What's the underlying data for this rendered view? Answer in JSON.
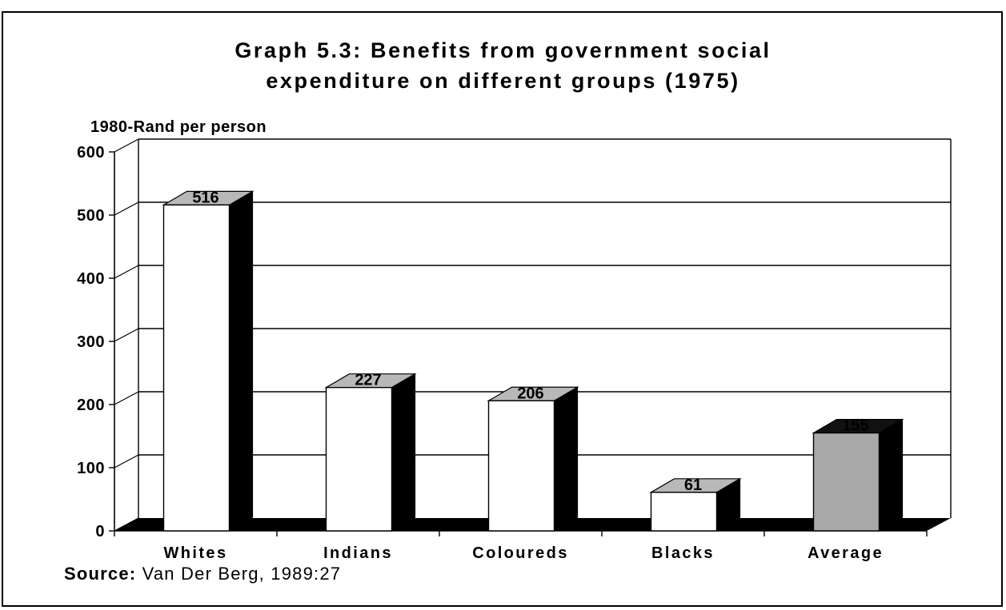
{
  "chart_data": {
    "type": "bar",
    "title_lines": [
      "Graph 5.3: Benefits from government social",
      "expenditure on different groups (1975)"
    ],
    "ylabel": "1980-Rand per person",
    "xlabel": "",
    "ylim": [
      0,
      600
    ],
    "yticks": [
      "0",
      "100",
      "200",
      "300",
      "400",
      "500",
      "600"
    ],
    "categories": [
      "Whites",
      "Indians",
      "Coloureds",
      "Blacks",
      "Average"
    ],
    "values": [
      516,
      227,
      206,
      61,
      155
    ],
    "data_labels": [
      "516",
      "227",
      "206",
      "61",
      "155"
    ],
    "highlight_category": "Average",
    "grid": true,
    "legend": "none",
    "colors": {
      "bar_face": "#ffffff",
      "bar_side": "#000000",
      "bar_top": "#b8b8b8",
      "highlight_face": "#a9a9a9",
      "highlight_top": "#111111",
      "floor": "#000000",
      "grid": "#000000"
    }
  },
  "source": {
    "label": "Source:",
    "text": " Van Der Berg, 1989:27"
  }
}
